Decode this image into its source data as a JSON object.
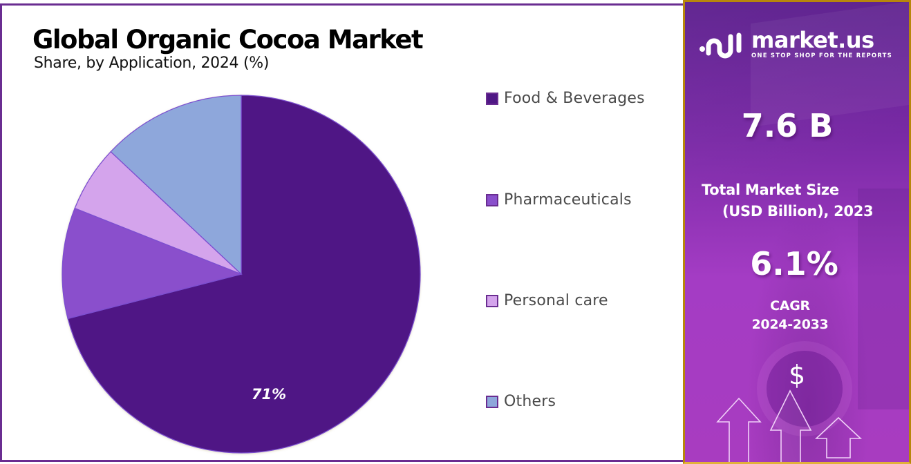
{
  "chart": {
    "title": "Global Organic Cocoa Market",
    "subtitle": "Share, by Application, 2024 (%)",
    "slice_label": "71%"
  },
  "legend": {
    "items": [
      {
        "label": "Food & Beverages",
        "color": "#4f1885"
      },
      {
        "label": "Pharmaceuticals",
        "color": "#8a4fcc"
      },
      {
        "label": "Personal care",
        "color": "#d4a4ec"
      },
      {
        "label": "Others",
        "color": "#8ea7db"
      }
    ]
  },
  "side_panel": {
    "logo_name": "market.us",
    "logo_tagline": "ONE STOP SHOP FOR THE REPORTS",
    "market_size_value": "7.6 B",
    "market_size_label_line1": "Total Market Size",
    "market_size_label_line2": "(USD Billion), 2023",
    "cagr_value": "6.1%",
    "cagr_label_line1": "CAGR",
    "cagr_label_line2": "2024-2033",
    "dollar_symbol": "$"
  },
  "colors": {
    "frame_purple": "#6a2d91",
    "panel_border_gold": "#b8860b",
    "slice_outline": "#7b4fd0"
  },
  "chart_data": {
    "type": "pie",
    "title": "Global Organic Cocoa Market",
    "subtitle": "Share, by Application, 2024 (%)",
    "categories": [
      "Food & Beverages",
      "Pharmaceuticals",
      "Personal care",
      "Others"
    ],
    "values": [
      71,
      10,
      6,
      13
    ],
    "data_labels": {
      "Food & Beverages": "71%"
    },
    "colors": [
      "#4f1885",
      "#8a4fcc",
      "#d4a4ec",
      "#8ea7db"
    ],
    "legend_position": "right",
    "start_angle": "12 o'clock, clockwise"
  }
}
